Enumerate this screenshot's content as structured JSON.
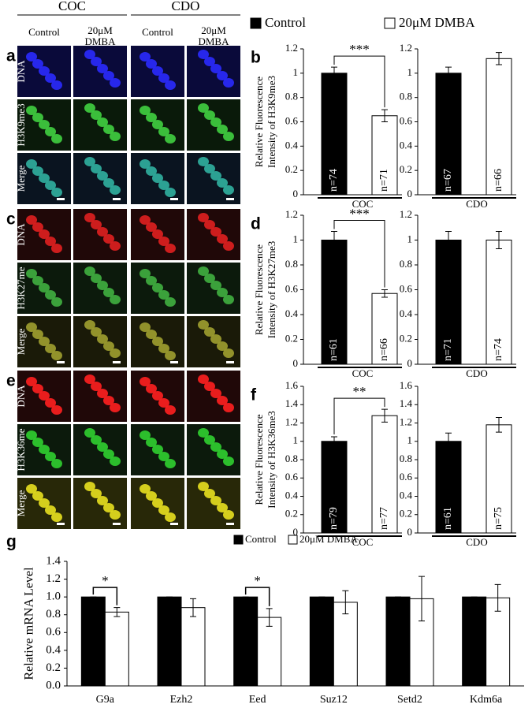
{
  "image_header": {
    "groups": [
      "COC",
      "CDO"
    ],
    "columns": [
      [
        "Control"
      ],
      [
        "20μM",
        "DMBA"
      ],
      [
        "Control"
      ],
      [
        "20μM",
        "DMBA"
      ]
    ]
  },
  "image_panels": [
    {
      "panel": "a",
      "rows": [
        "DNA",
        "H3K9me3",
        "Merge"
      ]
    },
    {
      "panel": "c",
      "rows": [
        "DNA",
        "H3K27me",
        "Merge"
      ]
    },
    {
      "panel": "e",
      "rows": [
        "DNA",
        "H3K36me",
        "Merge"
      ]
    }
  ],
  "legend": [
    {
      "name": "Control",
      "color": "#000000"
    },
    {
      "name": "20μM DMBA",
      "color": "#ffffff"
    }
  ],
  "chart_data": [
    {
      "type": "bar",
      "panel": "b",
      "ylabel": [
        "Relative Fluorescence",
        "Intensity of H3K9me3"
      ],
      "group": "COC",
      "values": [
        1,
        0.65
      ],
      "errors": [
        0.05,
        0.05
      ],
      "bar_labels": [
        "n=74",
        "n=71"
      ],
      "significance": "***",
      "ylim": [
        0,
        1.2
      ],
      "yticks": [
        0,
        0.2,
        0.4,
        0.6,
        0.8,
        1,
        1.2
      ]
    },
    {
      "type": "bar",
      "group": "CDO",
      "values": [
        1,
        1.12
      ],
      "errors": [
        0.05,
        0.05
      ],
      "bar_labels": [
        "n=67",
        "n=66"
      ],
      "ylim": [
        0,
        1.2
      ],
      "yticks": [
        0,
        0.2,
        0.4,
        0.6,
        0.8,
        1,
        1.2
      ]
    },
    {
      "type": "bar",
      "panel": "d",
      "ylabel": [
        "Relative Fluorescence",
        "Intensity of H3K27me3"
      ],
      "group": "COC",
      "values": [
        1,
        0.57
      ],
      "errors": [
        0.07,
        0.03
      ],
      "bar_labels": [
        "n=61",
        "n=66"
      ],
      "significance": "***",
      "ylim": [
        0,
        1.2
      ],
      "yticks": [
        0,
        0.2,
        0.4,
        0.6,
        0.8,
        1,
        1.2
      ]
    },
    {
      "type": "bar",
      "group": "CDO",
      "values": [
        1,
        1.0
      ],
      "errors": [
        0.07,
        0.07
      ],
      "bar_labels": [
        "n=71",
        "n=74"
      ],
      "ylim": [
        0,
        1.2
      ],
      "yticks": [
        0,
        0.2,
        0.4,
        0.6,
        0.8,
        1,
        1.2
      ]
    },
    {
      "type": "bar",
      "panel": "f",
      "ylabel": [
        "Relative Fluorescence",
        "Intensity of H3K36me3"
      ],
      "group": "COC",
      "values": [
        1,
        1.28
      ],
      "errors": [
        0.05,
        0.07
      ],
      "bar_labels": [
        "n=79",
        "n=77"
      ],
      "significance": "**",
      "ylim": [
        0,
        1.6
      ],
      "yticks": [
        0,
        0.2,
        0.4,
        0.6,
        0.8,
        1,
        1.2,
        1.4,
        1.6
      ]
    },
    {
      "type": "bar",
      "group": "CDO",
      "values": [
        1,
        1.18
      ],
      "errors": [
        0.09,
        0.08
      ],
      "bar_labels": [
        "n=61",
        "n=75"
      ],
      "ylim": [
        0,
        1.6
      ],
      "yticks": [
        0,
        0.2,
        0.4,
        0.6,
        0.8,
        1,
        1.2,
        1.4,
        1.6
      ]
    },
    {
      "type": "grouped_bar",
      "panel": "g",
      "ylabel": "Relative mRNA Level",
      "categories": [
        "G9a",
        "Ezh2",
        "Eed",
        "Suz12",
        "Setd2",
        "Kdm6a"
      ],
      "series": [
        {
          "name": "Control",
          "color": "#000000",
          "values": [
            1,
            1,
            1,
            1,
            1,
            1
          ],
          "errors": [
            0,
            0,
            0,
            0,
            0,
            0
          ]
        },
        {
          "name": "20μM DMBA",
          "color": "#ffffff",
          "values": [
            0.83,
            0.88,
            0.77,
            0.94,
            0.98,
            0.99
          ],
          "errors": [
            0.05,
            0.1,
            0.1,
            0.13,
            0.25,
            0.15
          ]
        }
      ],
      "significance": [
        "*",
        null,
        "*",
        null,
        null,
        null
      ],
      "ylim": [
        0,
        1.4
      ],
      "yticks": [
        {
          "value": 0,
          "label": "0.0"
        },
        {
          "value": 0.2,
          "label": "0.2"
        },
        {
          "value": 0.4,
          "label": "0.4"
        },
        {
          "value": 0.6,
          "label": "0.6"
        },
        {
          "value": 0.8,
          "label": "0.8"
        },
        {
          "value": 1,
          "label": "1.0"
        },
        {
          "value": 1.2,
          "label": "1.2"
        },
        {
          "value": 1.4,
          "label": "1.4"
        }
      ]
    }
  ]
}
